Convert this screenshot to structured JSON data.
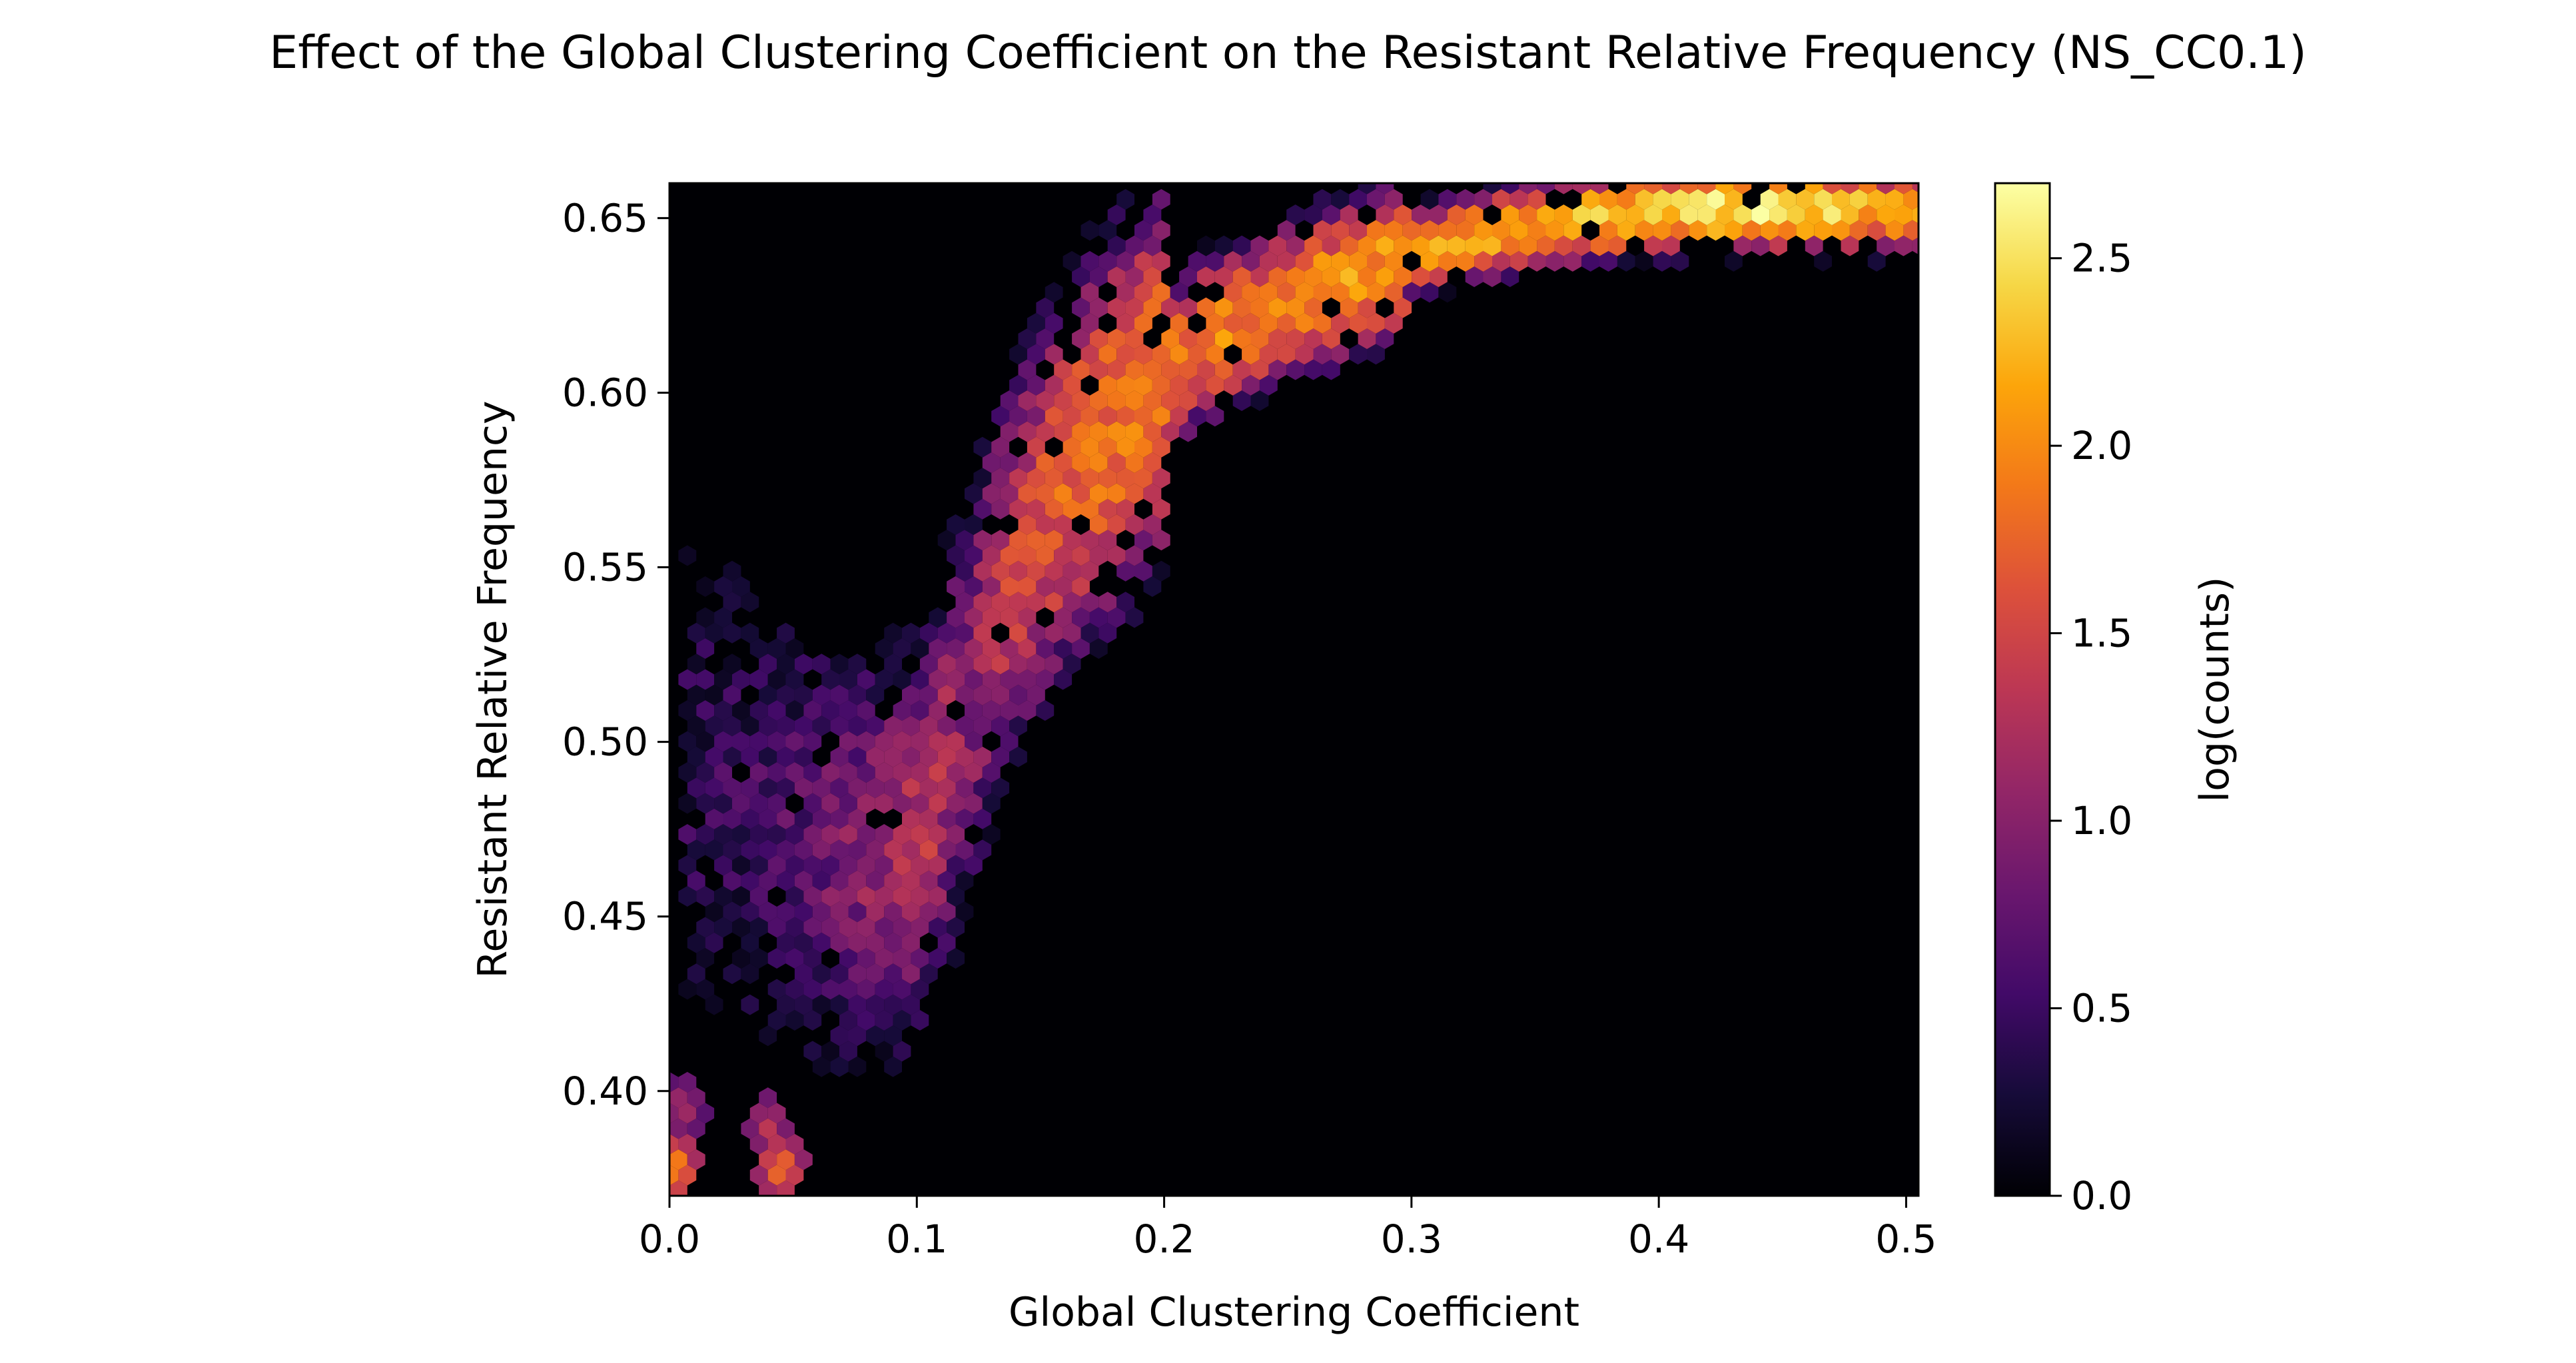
{
  "chart_data": {
    "type": "heatmap",
    "subtype": "hexbin",
    "title": "Effect of the Global Clustering Coefficient on the Resistant Relative Frequency (NS_CC0.1)",
    "xlabel": "Global Clustering Coefficient",
    "ylabel": "Resistant Relative Frequency",
    "xlim": [
      0.0,
      0.505
    ],
    "ylim": [
      0.37,
      0.66
    ],
    "x_ticks": [
      "0.0",
      "0.1",
      "0.2",
      "0.3",
      "0.4",
      "0.5"
    ],
    "y_ticks": [
      "0.40",
      "0.45",
      "0.50",
      "0.55",
      "0.60",
      "0.65"
    ],
    "colorbar": {
      "label": "log(counts)",
      "range": [
        0.0,
        2.7
      ],
      "ticks": [
        "0.0",
        "0.5",
        "1.0",
        "1.5",
        "2.0",
        "2.5"
      ],
      "colormap": "inferno"
    },
    "background_color": "#000004",
    "grid": false,
    "ridge": [
      {
        "x": 0.015,
        "y": 0.49,
        "log_count": 0.4
      },
      {
        "x": 0.045,
        "y": 0.475,
        "log_count": 0.6
      },
      {
        "x": 0.07,
        "y": 0.465,
        "log_count": 0.9
      },
      {
        "x": 0.095,
        "y": 0.47,
        "log_count": 1.2
      },
      {
        "x": 0.105,
        "y": 0.48,
        "log_count": 1.3
      },
      {
        "x": 0.12,
        "y": 0.51,
        "log_count": 1.0
      },
      {
        "x": 0.135,
        "y": 0.545,
        "log_count": 1.4
      },
      {
        "x": 0.16,
        "y": 0.575,
        "log_count": 1.7
      },
      {
        "x": 0.185,
        "y": 0.595,
        "log_count": 1.9
      },
      {
        "x": 0.215,
        "y": 0.615,
        "log_count": 1.9
      },
      {
        "x": 0.255,
        "y": 0.627,
        "log_count": 2.0
      },
      {
        "x": 0.3,
        "y": 0.64,
        "log_count": 2.1
      },
      {
        "x": 0.35,
        "y": 0.648,
        "log_count": 2.2
      },
      {
        "x": 0.4,
        "y": 0.652,
        "log_count": 2.4
      },
      {
        "x": 0.45,
        "y": 0.653,
        "log_count": 2.6
      },
      {
        "x": 0.5,
        "y": 0.652,
        "log_count": 2.0
      }
    ],
    "bottom_left_cluster": [
      {
        "x": 0.002,
        "y": 0.378,
        "log_count": 2.2
      },
      {
        "x": 0.005,
        "y": 0.395,
        "log_count": 1.3
      },
      {
        "x": 0.045,
        "y": 0.378,
        "log_count": 2.0
      },
      {
        "x": 0.04,
        "y": 0.39,
        "log_count": 1.4
      }
    ]
  }
}
